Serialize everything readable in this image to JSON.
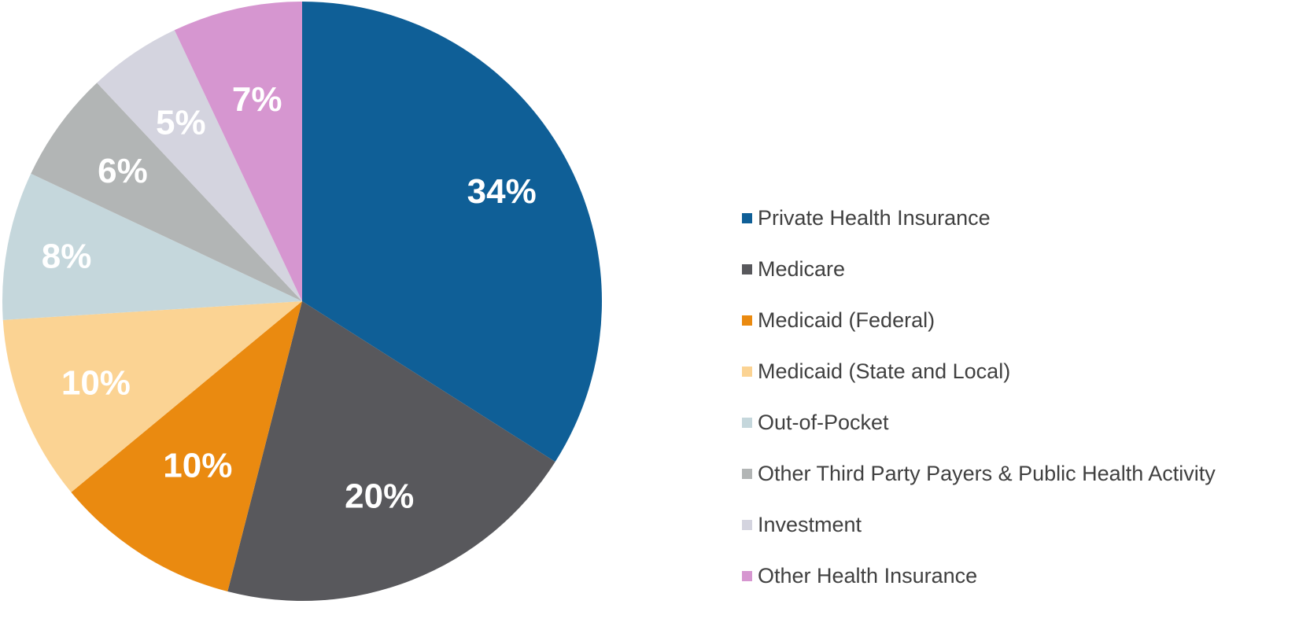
{
  "chart_data": {
    "type": "pie",
    "title": "",
    "start_angle_deg": 0,
    "direction": "clockwise",
    "legend_position": "right",
    "slices": [
      {
        "name": "Private Health Insurance",
        "value": 34,
        "label": "34%",
        "color": "#0f5f97"
      },
      {
        "name": "Medicare",
        "value": 20,
        "label": "20%",
        "color": "#58585c"
      },
      {
        "name": "Medicaid (Federal)",
        "value": 10,
        "label": "10%",
        "color": "#ea8a10"
      },
      {
        "name": "Medicaid (State and Local)",
        "value": 10,
        "label": "10%",
        "color": "#fbd393"
      },
      {
        "name": "Out-of-Pocket",
        "value": 8,
        "label": "8%",
        "color": "#c5d7dc"
      },
      {
        "name": "Other Third Party Payers & Public Health Activity",
        "value": 6,
        "label": "6%",
        "color": "#b2b5b5"
      },
      {
        "name": "Investment",
        "value": 5,
        "label": "5%",
        "color": "#d4d4df"
      },
      {
        "name": "Other Health Insurance",
        "value": 7,
        "label": "7%",
        "color": "#d696d0"
      }
    ]
  }
}
